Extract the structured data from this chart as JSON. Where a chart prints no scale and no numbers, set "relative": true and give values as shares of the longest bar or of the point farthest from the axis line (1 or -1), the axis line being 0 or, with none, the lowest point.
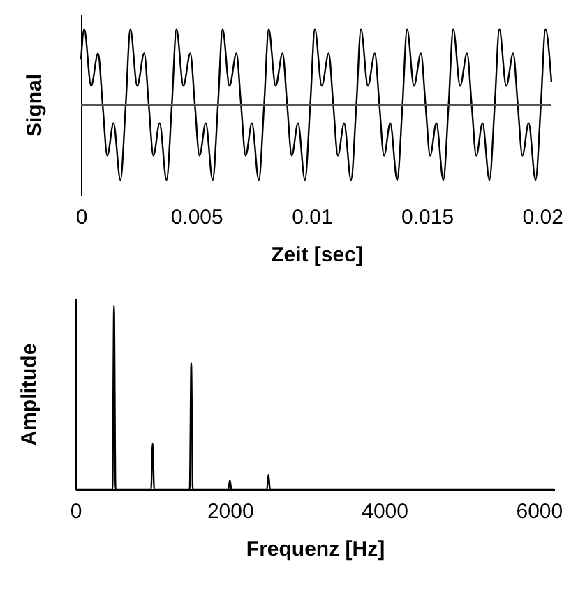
{
  "chart_data": [
    {
      "type": "line",
      "relative": true,
      "xlabel": "Zeit [sec]",
      "ylabel": "Signal",
      "xlim": [
        0,
        0.0204
      ],
      "xticks": [
        0,
        0.005,
        0.01,
        0.015,
        0.02
      ],
      "x": [
        0,
        0.00014,
        0.00044,
        0.00074,
        0.00094,
        0.00114,
        0.00141,
        0.00171,
        0.00194,
        0.00214,
        0.00244,
        0.00274,
        0.00294,
        0.00314,
        0.00341,
        0.00371,
        0.00394,
        0.00414,
        0.00444,
        0.00474,
        0.00494,
        0.00514,
        0.00541,
        0.00571,
        0.00594,
        0.00614,
        0.00644,
        0.00674,
        0.00694,
        0.00714,
        0.00741,
        0.00771,
        0.00794,
        0.00814,
        0.00844,
        0.00874,
        0.00894,
        0.00914,
        0.00941,
        0.00971,
        0.00994,
        0.01014,
        0.01044,
        0.01074,
        0.01094,
        0.01114,
        0.01141,
        0.01171,
        0.01194,
        0.01214,
        0.01244,
        0.01274,
        0.01294,
        0.01314,
        0.01341,
        0.01371,
        0.01394,
        0.01414,
        0.01444,
        0.01474,
        0.01494,
        0.01514,
        0.01541,
        0.01571,
        0.01594,
        0.01614,
        0.01644,
        0.01674,
        0.01694,
        0.01714,
        0.01741,
        0.01771,
        0.01794,
        0.01814,
        0.01844,
        0.01874,
        0.01894,
        0.01914,
        0.01941,
        0.01971,
        0.01994,
        0.02014,
        0.0204
      ],
      "values": [
        0.6,
        1,
        0.25,
        0.68,
        0,
        -0.67,
        -0.24,
        -0.99,
        0,
        1,
        0.25,
        0.68,
        0,
        -0.67,
        -0.24,
        -0.99,
        0,
        1,
        0.25,
        0.68,
        0,
        -0.67,
        -0.24,
        -0.99,
        0,
        1,
        0.25,
        0.68,
        0,
        -0.67,
        -0.24,
        -0.99,
        0,
        1,
        0.25,
        0.68,
        0,
        -0.67,
        -0.24,
        -0.99,
        0,
        1,
        0.25,
        0.68,
        0,
        -0.67,
        -0.24,
        -0.99,
        0,
        1,
        0.25,
        0.68,
        0,
        -0.67,
        -0.24,
        -0.99,
        0,
        1,
        0.25,
        0.68,
        0,
        -0.67,
        -0.24,
        -0.99,
        0,
        1,
        0.25,
        0.68,
        0,
        -0.67,
        -0.24,
        -0.99,
        0,
        1,
        0.25,
        0.68,
        0,
        -0.67,
        -0.24,
        -0.99,
        0,
        1,
        0.3
      ],
      "color": "#000000",
      "grid": false
    },
    {
      "type": "line",
      "relative": true,
      "xlabel": "Frequenz [Hz]",
      "ylabel": "Amplitude",
      "xlim": [
        0,
        6200
      ],
      "xticks": [
        0,
        2000,
        4000,
        6000
      ],
      "x": [
        0,
        480,
        500,
        520,
        980,
        1000,
        1020,
        1480,
        1500,
        1520,
        1980,
        2000,
        2020,
        2480,
        2500,
        2520,
        6200
      ],
      "values": [
        0,
        0,
        1,
        0,
        0,
        0.25,
        0,
        0,
        0.69,
        0,
        0,
        0.05,
        0,
        0,
        0.08,
        0,
        0
      ],
      "color": "#000000",
      "grid": false
    }
  ]
}
